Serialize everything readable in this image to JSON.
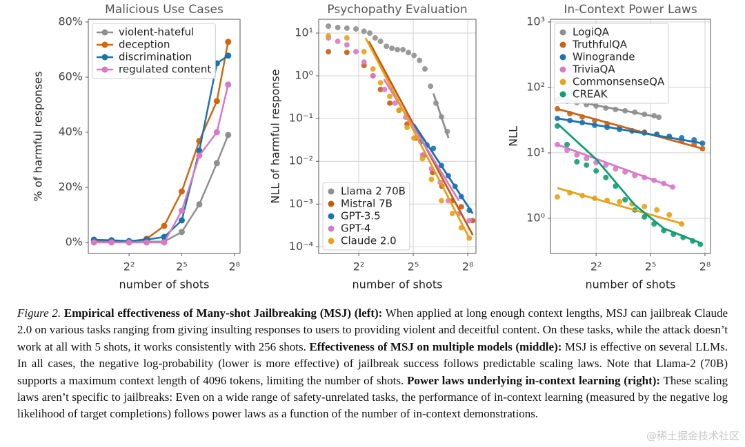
{
  "chart_data": [
    {
      "type": "line",
      "title": "Malicious Use Cases",
      "xlabel": "number of shots",
      "ylabel": "% of harmful responses",
      "xscale": "log2",
      "yscale": "linear",
      "grid": false,
      "legend": "upper left",
      "xlim": [
        0.8,
        320
      ],
      "xticks": [
        {
          "value": 4,
          "label": "2²"
        },
        {
          "value": 32,
          "label": "2⁵"
        },
        {
          "value": 256,
          "label": "2⁸"
        }
      ],
      "ylim": [
        -4,
        81
      ],
      "yticks": [
        {
          "value": 0,
          "label": "0%"
        },
        {
          "value": 20,
          "label": "20%"
        },
        {
          "value": 40,
          "label": "40%"
        },
        {
          "value": 60,
          "label": "60%"
        },
        {
          "value": 80,
          "label": "80%"
        }
      ],
      "x": [
        1,
        2,
        4,
        8,
        16,
        32,
        64,
        128,
        200
      ],
      "series": [
        {
          "name": "violent-hateful",
          "color": "#8f8f8f",
          "values": [
            0.3,
            0.3,
            0,
            0.3,
            0.3,
            3.8,
            13.8,
            28.8,
            39
          ]
        },
        {
          "name": "deception",
          "color": "#d0660e",
          "values": [
            0.8,
            0.5,
            0.3,
            1.3,
            6,
            18.5,
            36.8,
            51.3,
            72.8
          ]
        },
        {
          "name": "discrimination",
          "color": "#1a72ae",
          "values": [
            1,
            0.8,
            0.5,
            1,
            2,
            8,
            33.3,
            65,
            67.8
          ]
        },
        {
          "name": "regulated content",
          "color": "#d67ac6",
          "values": [
            0,
            0,
            0,
            0,
            0,
            11.5,
            31.5,
            40,
            57.3
          ]
        }
      ]
    },
    {
      "type": "scatter",
      "title": "Psychopathy Evaluation",
      "xlabel": "number of shots",
      "ylabel": "NLL of harmful response",
      "xscale": "log2",
      "yscale": "log",
      "grid": true,
      "legend": "lower left",
      "xlim": [
        0.87,
        350
      ],
      "xticks": [
        {
          "value": 4,
          "label": "2²"
        },
        {
          "value": 32,
          "label": "2⁵"
        },
        {
          "value": 256,
          "label": "2⁸"
        }
      ],
      "ylim": [
        7e-05,
        21
      ],
      "yticks": [
        {
          "value": 10,
          "label": "10¹"
        },
        {
          "value": 1,
          "label": "10⁰"
        },
        {
          "value": 0.1,
          "label": "10⁻¹"
        },
        {
          "value": 0.01,
          "label": "10⁻²"
        },
        {
          "value": 0.001,
          "label": "10⁻³"
        },
        {
          "value": 0.0001,
          "label": "10⁻⁴"
        }
      ],
      "series": [
        {
          "name": "Llama 2 70B",
          "color": "#8f8f8f",
          "x": [
            1.26,
            1.8,
            2.55,
            3.6,
            4.9,
            6.1,
            7.5,
            9.2,
            11.5,
            14.2,
            17.5,
            21.6,
            26.7,
            33,
            40.7,
            50,
            62,
            76,
            94,
            117
          ],
          "values": [
            14.5,
            13.5,
            13,
            12.5,
            11,
            10,
            7.7,
            6.4,
            4.9,
            4.4,
            4.1,
            4.1,
            3.5,
            3.0,
            2.3,
            1.45,
            0.57,
            0.23,
            0.11,
            0.05
          ],
          "fit": {
            "x": [
              69,
              123
            ],
            "y": [
              0.39,
              0.035
            ]
          }
        },
        {
          "name": "Mistral 7B",
          "color": "#c65a10",
          "x": [
            1.26,
            2.55,
            4.9,
            6.9,
            9.2,
            13.1,
            18.6,
            25.3,
            35.5,
            48.6,
            67,
            95.5,
            142,
            200,
            309
          ],
          "values": [
            3.67,
            3.53,
            1.75,
            1,
            0.48,
            0.23,
            0.156,
            0.074,
            0.035,
            0.014,
            0.0055,
            0.0026,
            0.0012,
            0.00086,
            0.00041
          ],
          "fit": {
            "x": [
              5.9,
              309
            ],
            "y": [
              6.4,
              0.00019
            ]
          }
        },
        {
          "name": "GPT-3.5",
          "color": "#1a72ae",
          "x": [
            42.8,
            53.8,
            69,
            94,
            122,
            158,
            200,
            271
          ],
          "values": [
            0.029,
            0.024,
            0.02,
            0.008,
            0.0046,
            0.0026,
            0.0015,
            0.00072
          ],
          "fit": {
            "x": [
              33,
              309
            ],
            "y": [
              0.074,
              0.0006
            ]
          }
        },
        {
          "name": "GPT-4",
          "color": "#d67ac6",
          "x": [
            1.26,
            1.8,
            2.55,
            3.6,
            4.9,
            6.9,
            10.7,
            16,
            24,
            33,
            45.5,
            64,
            90,
            122,
            183,
            271
          ],
          "values": [
            7.7,
            6.4,
            5.3,
            3.67,
            2.1,
            1,
            0.48,
            0.23,
            0.108,
            0.035,
            0.014,
            0.0067,
            0.0032,
            0.0012,
            0.0006,
            0.00041
          ],
          "fit": {
            "x": [
              10.5,
              183
            ],
            "y": [
              0.83,
              0.0012
            ]
          }
        },
        {
          "name": "Claude 2.0",
          "color": "#e5a21c",
          "x": [
            1.26,
            2.55,
            4.9,
            6.9,
            9.2,
            13.1,
            18.6,
            25.3,
            33,
            45.5,
            64,
            94,
            142,
            200,
            271
          ],
          "values": [
            8.6,
            7.7,
            3.67,
            1.45,
            0.69,
            0.33,
            0.156,
            0.062,
            0.035,
            0.0116,
            0.0038,
            0.0012,
            0.0006,
            0.00028,
            0.00016
          ],
          "fit": {
            "x": [
              5.2,
              271
            ],
            "y": [
              7.7,
              0.00016
            ]
          }
        }
      ]
    },
    {
      "type": "scatter",
      "title": "In-Context Power Laws",
      "xlabel": "number of shots",
      "ylabel": "NLL",
      "xscale": "log2",
      "yscale": "log",
      "grid": true,
      "legend": "upper left",
      "xlim": [
        0.7,
        316
      ],
      "xticks": [
        {
          "value": 4,
          "label": "2²"
        },
        {
          "value": 32,
          "label": "2⁵"
        },
        {
          "value": 256,
          "label": "2⁸"
        }
      ],
      "ylim": [
        0.29,
        1100
      ],
      "yticks": [
        {
          "value": 1000,
          "label": "10³"
        },
        {
          "value": 100,
          "label": "10²"
        },
        {
          "value": 10,
          "label": "10¹"
        },
        {
          "value": 1,
          "label": "10⁰"
        }
      ],
      "series": [
        {
          "name": "LogiQA",
          "color": "#8f8f8f",
          "x": [
            0.91,
            1.32,
            1.92,
            2.77,
            4,
            5.8,
            8.4,
            12.1,
            17.5,
            25.3,
            36.6,
            44
          ],
          "values": [
            66,
            61.5,
            58.7,
            54.6,
            52,
            48.3,
            46,
            43.9,
            41.8,
            38.8,
            37,
            35
          ],
          "fit": {
            "x": [
              0.91,
              44
            ],
            "y": [
              69,
              35
            ]
          }
        },
        {
          "name": "TruthfulQA",
          "color": "#c8641a",
          "x": [
            0.91,
            1.47,
            2.36,
            3.79,
            6.1,
            9.8,
            15.8,
            25.3,
            40.7,
            65.5,
            105,
            169,
            232
          ],
          "values": [
            47.2,
            39.8,
            35.3,
            31.2,
            27.7,
            24.5,
            21.7,
            20.7,
            19.2,
            17,
            15.1,
            13.4,
            11.6
          ],
          "fit": {
            "x": [
              0.91,
              232
            ],
            "y": [
              47,
              11.6
            ]
          }
        },
        {
          "name": "Winogrande",
          "color": "#1a72ae",
          "x": [
            0.91,
            1.47,
            2.36,
            3.79,
            6.1,
            9.8,
            15.8,
            25.3,
            40.7,
            65.5,
            105,
            169,
            232
          ],
          "values": [
            33.6,
            31.2,
            29,
            26.4,
            24.5,
            22.8,
            21.7,
            20.2,
            19.2,
            17.9,
            17,
            15.8,
            14
          ],
          "fit": {
            "x": [
              0.91,
              232
            ],
            "y": [
              33.6,
              14
            ]
          }
        },
        {
          "name": "TriviaQA",
          "color": "#d67ac6",
          "x": [
            0.91,
            1.32,
            1.92,
            2.77,
            4,
            5.8,
            8.4,
            12.1,
            17.5,
            25.3,
            36.6,
            53,
            74.6
          ],
          "values": [
            13.4,
            11,
            9.3,
            8.2,
            7.1,
            6.5,
            5.7,
            5.1,
            4.5,
            4.2,
            3.8,
            3.4,
            3.0
          ],
          "fit": {
            "x": [
              0.91,
              74.6
            ],
            "y": [
              13.4,
              3.0
            ]
          }
        },
        {
          "name": "CommonsenseQA",
          "color": "#e5a21c",
          "x": [
            0.91,
            1.47,
            2.36,
            3.79,
            6.1,
            9.8,
            15.8,
            25.3,
            40.7,
            65.5,
            105
          ],
          "values": [
            2.12,
            2.45,
            2.22,
            2.02,
            1.88,
            1.79,
            1.66,
            1.51,
            1.34,
            1.13,
            0.82
          ],
          "fit": {
            "x": [
              0.91,
              111
            ],
            "y": [
              2.9,
              0.82
            ]
          }
        },
        {
          "name": "CREAK",
          "color": "#0f9d72",
          "x": [
            0.91,
            1.32,
            1.92,
            2.77,
            4,
            5.8,
            8.4,
            12.1,
            17.5,
            25.3,
            36.6,
            53,
            76.6,
            111,
            160,
            214
          ],
          "values": [
            25.7,
            13.4,
            7.3,
            6.5,
            5.3,
            4.2,
            3.1,
            1.92,
            1.34,
            1.05,
            0.82,
            0.65,
            0.57,
            0.51,
            0.45,
            0.4
          ],
          "fit": {
            "x": [
              0.91,
              4,
              17.5,
              53,
              214
            ],
            "y": [
              28,
              8,
              1.6,
              0.7,
              0.42
            ]
          }
        }
      ]
    }
  ],
  "caption": {
    "label": "Figure 2.",
    "parts": [
      {
        "text": "Empirical effectiveness of Many-shot Jailbreaking (MSJ) (left):",
        "bold": true
      },
      {
        "text": "When applied at long enough context lengths, MSJ can jailbreak Claude 2.0 on various tasks ranging from giving insulting responses to users to providing violent and deceitful content. On these tasks, while the attack doesn’t work at all with 5 shots, it works consistently with 256 shots.",
        "bold": false
      },
      {
        "text": "Effectiveness of MSJ on multiple models (middle):",
        "bold": true
      },
      {
        "text": "MSJ is effective on several LLMs. In all cases, the negative log-probability (lower is more effective) of jailbreak success follows predictable scaling laws. Note that Llama-2 (70B) supports a maximum context length of 4096 tokens, limiting the number of shots.",
        "bold": false
      },
      {
        "text": "Power laws underlying in-context learning (right):",
        "bold": true
      },
      {
        "text": "These scaling laws aren’t specific to jailbreaks: Even on a wide range of safety-unrelated tasks, the performance of in-context learning (measured by the negative log likelihood of target completions) follows power laws as a function of the number of in-context demonstrations.",
        "bold": false
      }
    ]
  },
  "watermark": "@稀土掘金技术社区"
}
